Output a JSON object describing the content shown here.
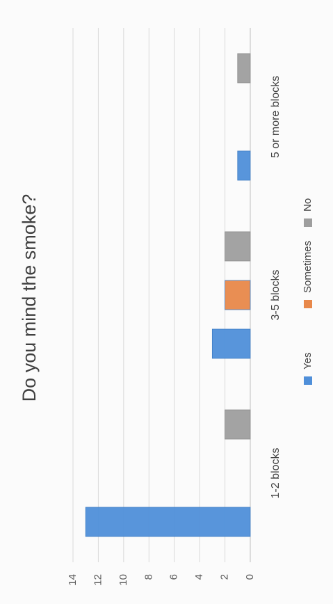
{
  "chart_data": {
    "type": "bar",
    "title": "Do you mind the smoke?",
    "categories": [
      "1-2 blocks",
      "3-5 blocks",
      "5 or more blocks"
    ],
    "series": [
      {
        "name": "Yes",
        "values": [
          13,
          3,
          1
        ],
        "color": "#4f8fd9"
      },
      {
        "name": "Sometimes",
        "values": [
          0,
          2,
          0
        ],
        "color": "#e8884a"
      },
      {
        "name": "No",
        "values": [
          2,
          2,
          1
        ],
        "color": "#9e9e9e"
      }
    ],
    "ylim": [
      0,
      14
    ],
    "yticks": [
      0,
      2,
      4,
      6,
      8,
      10,
      12,
      14
    ],
    "grid": true,
    "legend": "bottom"
  }
}
